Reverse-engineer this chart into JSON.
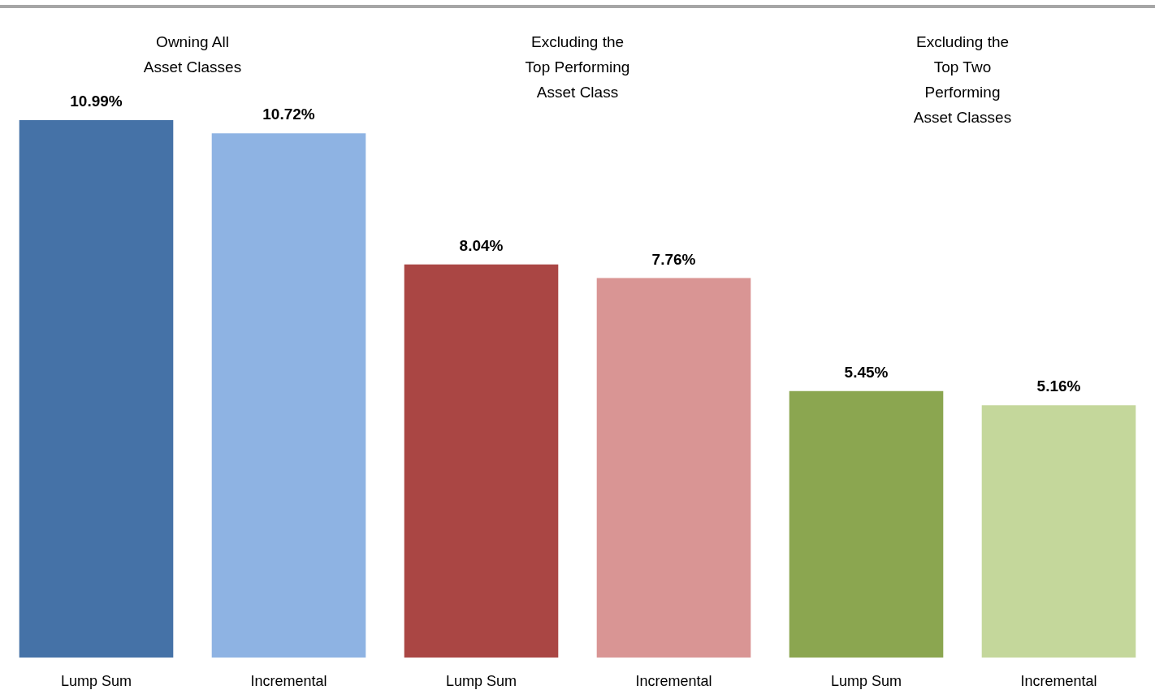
{
  "chart_data": {
    "type": "bar",
    "categories": [
      "Lump Sum",
      "Incremental",
      "Lump Sum",
      "Incremental",
      "Lump Sum",
      "Incremental"
    ],
    "values": [
      10.99,
      10.72,
      8.04,
      7.76,
      5.45,
      5.16
    ],
    "colors": [
      "#4572a7",
      "#8eb3e3",
      "#aa4644",
      "#d99594",
      "#8ba650",
      "#c4d79b"
    ],
    "value_labels": [
      "10.99%",
      "10.72%",
      "8.04%",
      "7.76%",
      "5.45%",
      "5.16%"
    ],
    "tick_labels": "x",
    "annotations": [
      "Owning All\nAsset Classes",
      "Excluding the\nTop Performing\nAsset Class",
      "Excluding the\nTop Two\nPerforming\nAsset Classes"
    ]
  }
}
